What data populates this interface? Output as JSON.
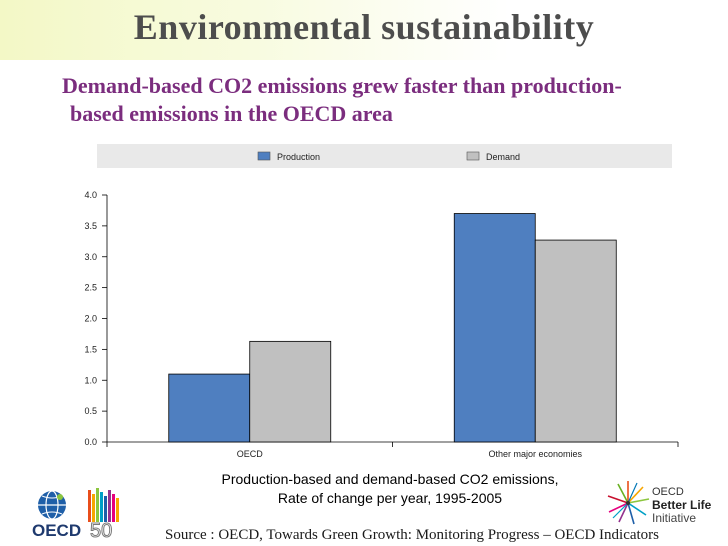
{
  "slide": {
    "title": "Environmental sustainability",
    "subtitle_line1": "Demand-based CO2 emissions grew faster than production-",
    "subtitle_line2": "based emissions in the OECD area",
    "caption_line1": "Production-based and demand-based CO2 emissions,",
    "caption_line2": "Rate of change per year, 1995-2005",
    "source": "Source : OECD, Towards Green Growth: Monitoring Progress – OECD Indicators"
  },
  "logos": {
    "oecd50_text": "OECD",
    "oecd50_number": "50",
    "better_life_line1": "OECD",
    "better_life_line2": "Better Life",
    "better_life_line3": "Initiative"
  },
  "colors": {
    "production": "#4f7fc0",
    "demand": "#c0c0c0",
    "legend_bg": "#e9e9e9",
    "subtitle": "#7b2d7e"
  },
  "chart_data": {
    "type": "bar",
    "categories": [
      "OECD",
      "Other major economies"
    ],
    "series": [
      {
        "name": "Production",
        "values": [
          1.1,
          3.7
        ]
      },
      {
        "name": "Demand",
        "values": [
          1.63,
          3.27
        ]
      }
    ],
    "ylim": [
      0,
      4
    ],
    "yticks": [
      "0.0",
      "0.5",
      "1.0",
      "1.5",
      "2.0",
      "2.5",
      "3.0",
      "3.5",
      "4.0"
    ],
    "legend_position": "top",
    "grid": false
  }
}
